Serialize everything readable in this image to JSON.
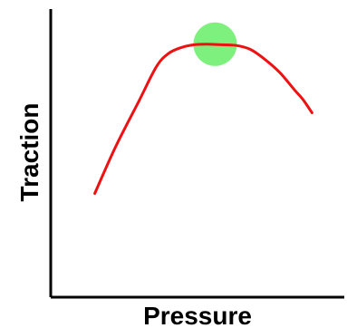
{
  "chart_data": {
    "type": "line",
    "title": "",
    "xlabel": "Pressure",
    "ylabel": "Traction",
    "xlim": [
      0,
      100
    ],
    "ylim": [
      0,
      100
    ],
    "grid": false,
    "show_ticks": false,
    "series": [
      {
        "color": "#ee1111",
        "x": [
          15,
          22,
          30,
          36,
          40,
          44,
          48,
          53,
          58,
          63,
          68,
          73,
          78,
          83,
          86,
          89
        ],
        "y": [
          36,
          52,
          68,
          80,
          84.5,
          86.5,
          87.5,
          87.8,
          87.6,
          87.4,
          86,
          82.5,
          78,
          72,
          68.5,
          64
        ]
      }
    ],
    "highlight": {
      "x": 56,
      "y": 87.8,
      "color": "#7df07d"
    }
  }
}
